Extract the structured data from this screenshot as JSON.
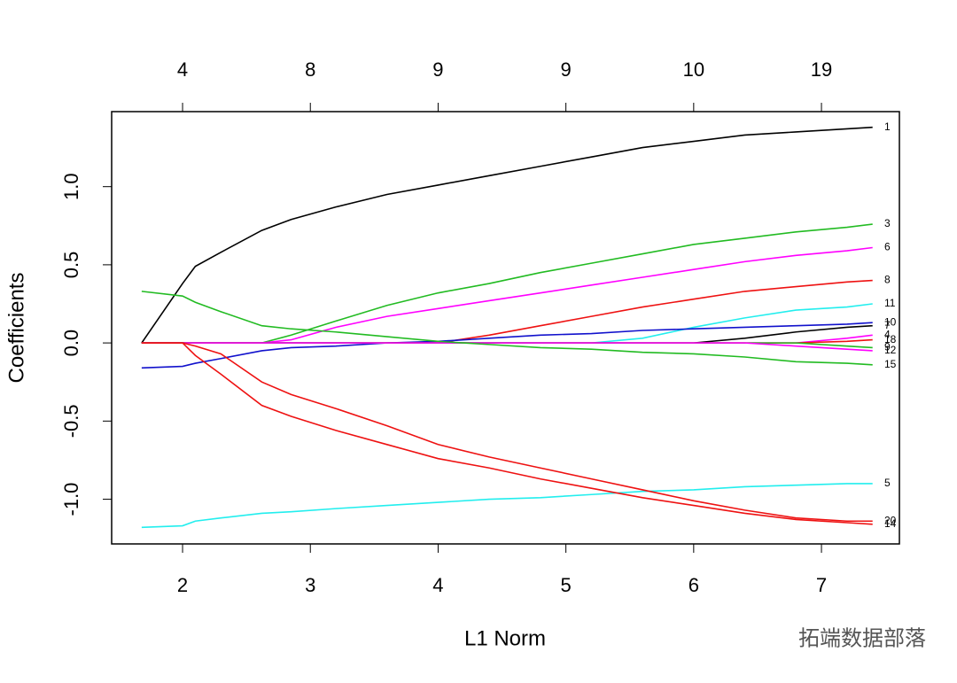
{
  "chart_data": {
    "type": "line",
    "xlabel": "L1 Norm",
    "ylabel": "Coefficients",
    "watermark": "拓端数据部落",
    "x": [
      1.68,
      2.0,
      2.1,
      2.3,
      2.62,
      2.85,
      3.2,
      3.6,
      4.0,
      4.4,
      4.8,
      5.2,
      5.6,
      6.0,
      6.4,
      6.8,
      7.2,
      7.4
    ],
    "xlim": [
      1.445,
      7.61
    ],
    "xticks": [
      2,
      3,
      4,
      5,
      6,
      7
    ],
    "x2ticks": [
      {
        "value": 2,
        "label": "4"
      },
      {
        "value": 3,
        "label": "8"
      },
      {
        "value": 4,
        "label": "9"
      },
      {
        "value": 5,
        "label": "9"
      },
      {
        "value": 6,
        "label": "10"
      },
      {
        "value": 7,
        "label": "19"
      }
    ],
    "ylim": [
      -1.286,
      1.48
    ],
    "yticks": [
      {
        "value": -1,
        "label": "-1.0"
      },
      {
        "value": -0.5,
        "label": "-0.5"
      },
      {
        "value": 0,
        "label": "0.0"
      },
      {
        "value": 0.5,
        "label": "0.5"
      },
      {
        "value": 1,
        "label": "1.0"
      }
    ],
    "series": [
      {
        "name": "1",
        "color": "#000000",
        "values": [
          0,
          0.38,
          0.49,
          0.58,
          0.72,
          0.79,
          0.87,
          0.95,
          1.01,
          1.07,
          1.13,
          1.19,
          1.25,
          1.29,
          1.33,
          1.35,
          1.37,
          1.38
        ]
      },
      {
        "name": "3",
        "color": "#22bb22",
        "values": [
          0,
          0,
          0,
          0,
          0,
          0.05,
          0.14,
          0.24,
          0.32,
          0.38,
          0.45,
          0.51,
          0.57,
          0.63,
          0.67,
          0.71,
          0.74,
          0.76
        ]
      },
      {
        "name": "6",
        "color": "#ff00ff",
        "values": [
          0,
          0,
          0,
          0,
          0,
          0.02,
          0.1,
          0.17,
          0.22,
          0.27,
          0.32,
          0.37,
          0.42,
          0.47,
          0.52,
          0.56,
          0.59,
          0.61
        ]
      },
      {
        "name": "8",
        "color": "#ee1111",
        "values": [
          0,
          0,
          0,
          0,
          0,
          0,
          0,
          0,
          0,
          0.05,
          0.11,
          0.17,
          0.23,
          0.28,
          0.33,
          0.36,
          0.39,
          0.4
        ]
      },
      {
        "name": "11",
        "color": "#22eeee",
        "values": [
          0,
          0,
          0,
          0,
          0,
          0,
          0,
          0,
          0,
          0,
          0,
          0,
          0.03,
          0.1,
          0.16,
          0.21,
          0.23,
          0.25
        ]
      },
      {
        "name": "10",
        "color": "#1111cc",
        "values": [
          -0.16,
          -0.15,
          -0.13,
          -0.1,
          -0.05,
          -0.03,
          -0.02,
          0,
          0.01,
          0.03,
          0.05,
          0.06,
          0.08,
          0.09,
          0.1,
          0.11,
          0.12,
          0.13
        ]
      },
      {
        "name": "7",
        "color": "#000000",
        "values": [
          0,
          0,
          0,
          0,
          0,
          0,
          0,
          0,
          0,
          0,
          0,
          0,
          0,
          0,
          0.03,
          0.07,
          0.1,
          0.11
        ]
      },
      {
        "name": "4",
        "color": "#ff00ff",
        "values": [
          0,
          0,
          0,
          0,
          0,
          0,
          0,
          0,
          0,
          0,
          0,
          0,
          0,
          0,
          0,
          0,
          0.03,
          0.05
        ]
      },
      {
        "name": "18",
        "color": "#ee1111",
        "values": [
          0,
          0,
          0,
          0,
          0,
          0,
          0,
          0,
          0,
          0,
          0,
          0,
          0,
          0,
          0,
          0,
          0.01,
          0.02
        ]
      },
      {
        "name": "9",
        "color": "#22bb22",
        "values": [
          0,
          0,
          0,
          0,
          0,
          0,
          0,
          0,
          0,
          0,
          0,
          0,
          0,
          0,
          0,
          0,
          -0.02,
          -0.03
        ]
      },
      {
        "name": "12",
        "color": "#ff00ff",
        "values": [
          0,
          0,
          0,
          0,
          0,
          0,
          0,
          0,
          0,
          0,
          0,
          0,
          0,
          0,
          0,
          -0.02,
          -0.04,
          -0.05
        ]
      },
      {
        "name": "15",
        "color": "#22bb22",
        "values": [
          0.33,
          0.3,
          0.26,
          0.2,
          0.11,
          0.09,
          0.07,
          0.04,
          0.01,
          -0.01,
          -0.03,
          -0.04,
          -0.06,
          -0.07,
          -0.09,
          -0.12,
          -0.13,
          -0.14
        ]
      },
      {
        "name": "5",
        "color": "#22eeee",
        "values": [
          -1.18,
          -1.17,
          -1.14,
          -1.12,
          -1.09,
          -1.08,
          -1.06,
          -1.04,
          -1.02,
          -1.0,
          -0.99,
          -0.97,
          -0.95,
          -0.94,
          -0.92,
          -0.91,
          -0.9,
          -0.9
        ]
      },
      {
        "name": "20",
        "color": "#ee1111",
        "values": [
          0,
          0,
          -0.02,
          -0.07,
          -0.25,
          -0.33,
          -0.42,
          -0.53,
          -0.65,
          -0.73,
          -0.8,
          -0.87,
          -0.94,
          -1.01,
          -1.07,
          -1.12,
          -1.14,
          -1.14
        ]
      },
      {
        "name": "14",
        "color": "#ee1111",
        "values": [
          0,
          0,
          -0.08,
          -0.2,
          -0.4,
          -0.47,
          -0.56,
          -0.65,
          -0.74,
          -0.8,
          -0.87,
          -0.93,
          -0.99,
          -1.04,
          -1.09,
          -1.13,
          -1.15,
          -1.16
        ]
      }
    ]
  }
}
